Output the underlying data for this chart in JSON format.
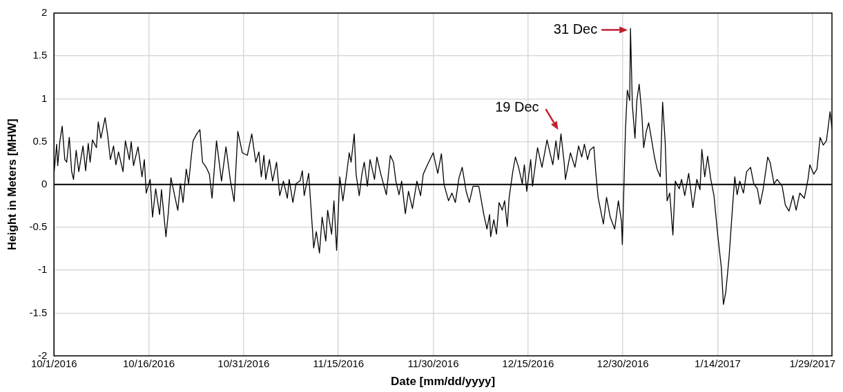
{
  "chart_data": {
    "type": "line",
    "xlabel": "Date [mm/dd/yyyy]",
    "ylabel": "Height in Meters [MHW]",
    "xlim": [
      "2016-10-01",
      "2017-02-01T02:00"
    ],
    "xticks": [
      {
        "value": "2016-10-01",
        "label": "10/1/2016"
      },
      {
        "value": "2016-10-16",
        "label": "10/16/2016"
      },
      {
        "value": "2016-10-31",
        "label": "10/31/2016"
      },
      {
        "value": "2016-11-15",
        "label": "11/15/2016"
      },
      {
        "value": "2016-11-30",
        "label": "11/30/2016"
      },
      {
        "value": "2016-12-15",
        "label": "12/15/2016"
      },
      {
        "value": "2016-12-30",
        "label": "12/30/2016"
      },
      {
        "value": "2017-01-14",
        "label": "1/14/2017"
      },
      {
        "value": "2017-01-29",
        "label": "1/29/2017"
      }
    ],
    "ylim": [
      -2,
      2
    ],
    "yticks": [
      -2,
      -1.5,
      -1,
      -0.5,
      0,
      0.5,
      1,
      1.5,
      2
    ],
    "grid": true,
    "legend": false,
    "marker": "none",
    "line_style": "solid",
    "ref_lines": [
      {
        "axis": "y",
        "value": 0,
        "color": "#000000"
      }
    ],
    "annotations": [
      {
        "text": "19 Dec",
        "x": "2016-12-20T05:00",
        "y": 0.59
      },
      {
        "text": "31 Dec",
        "x": "2016-12-31T05:00",
        "y": 1.82
      }
    ],
    "x": [
      "2016-10-01T00:00",
      "2016-10-01T10:00",
      "2016-10-01T14:00",
      "2016-10-01T22:00",
      "2016-10-02T07:00",
      "2016-10-02T17:00",
      "2016-10-03T00:00",
      "2016-10-03T10:00",
      "2016-10-03T19:00",
      "2016-10-04T02:00",
      "2016-10-04T12:00",
      "2016-10-04T22:00",
      "2016-10-05T14:00",
      "2016-10-06T00:00",
      "2016-10-06T10:00",
      "2016-10-06T17:00",
      "2016-10-07T02:00",
      "2016-10-07T17:00",
      "2016-10-08T00:00",
      "2016-10-08T10:00",
      "2016-10-09T02:00",
      "2016-10-09T12:00",
      "2016-10-09T22:00",
      "2016-10-10T10:00",
      "2016-10-10T19:00",
      "2016-10-11T05:00",
      "2016-10-11T22:00",
      "2016-10-12T07:00",
      "2016-10-12T22:00",
      "2016-10-13T05:00",
      "2016-10-13T14:00",
      "2016-10-14T07:00",
      "2016-10-14T22:00",
      "2016-10-15T07:00",
      "2016-10-15T14:00",
      "2016-10-16T05:00",
      "2016-10-16T14:00",
      "2016-10-17T02:00",
      "2016-10-17T17:00",
      "2016-10-18T00:00",
      "2016-10-18T17:00",
      "2016-10-19T02:00",
      "2016-10-19T12:00",
      "2016-10-20T02:00",
      "2016-10-20T14:00",
      "2016-10-21T00:00",
      "2016-10-21T10:00",
      "2016-10-21T22:00",
      "2016-10-22T07:00",
      "2016-10-22T17:00",
      "2016-10-23T00:00",
      "2016-10-23T14:00",
      "2016-10-24T02:00",
      "2016-10-24T12:00",
      "2016-10-25T02:00",
      "2016-10-25T14:00",
      "2016-10-26T00:00",
      "2016-10-26T17:00",
      "2016-10-27T12:00",
      "2016-10-28T05:00",
      "2016-10-28T22:00",
      "2016-10-29T12:00",
      "2016-10-30T02:00",
      "2016-10-30T19:00",
      "2016-10-31T14:00",
      "2016-11-01T07:00",
      "2016-11-01T22:00",
      "2016-11-02T10:00",
      "2016-11-02T19:00",
      "2016-11-03T05:00",
      "2016-11-03T12:00",
      "2016-11-04T02:00",
      "2016-11-04T14:00",
      "2016-11-05T05:00",
      "2016-11-05T17:00",
      "2016-11-06T07:00",
      "2016-11-06T22:00",
      "2016-11-07T05:00",
      "2016-11-07T19:00",
      "2016-11-08T07:00",
      "2016-11-08T22:00",
      "2016-11-09T07:00",
      "2016-11-09T14:00",
      "2016-11-10T07:00",
      "2016-11-10T14:00",
      "2016-11-11T02:00",
      "2016-11-11T12:00",
      "2016-11-12T00:00",
      "2016-11-12T10:00",
      "2016-11-13T00:00",
      "2016-11-13T07:00",
      "2016-11-13T22:00",
      "2016-11-14T07:00",
      "2016-11-14T17:00",
      "2016-11-15T05:00",
      "2016-11-15T17:00",
      "2016-11-16T07:00",
      "2016-11-16T17:00",
      "2016-11-17T00:00",
      "2016-11-17T12:00",
      "2016-11-17T19:00",
      "2016-11-18T07:00",
      "2016-11-18T17:00",
      "2016-11-19T02:00",
      "2016-11-19T14:00",
      "2016-11-20T00:00",
      "2016-11-20T17:00",
      "2016-11-21T02:00",
      "2016-11-21T17:00",
      "2016-11-22T14:00",
      "2016-11-23T05:00",
      "2016-11-23T17:00",
      "2016-11-24T02:00",
      "2016-11-24T14:00",
      "2016-11-25T00:00",
      "2016-11-25T14:00",
      "2016-11-26T02:00",
      "2016-11-26T17:00",
      "2016-11-27T10:00",
      "2016-11-28T00:00",
      "2016-11-28T10:00",
      "2016-11-29T02:00",
      "2016-11-30T00:00",
      "2016-11-30T17:00",
      "2016-12-01T07:00",
      "2016-12-01T17:00",
      "2016-12-02T10:00",
      "2016-12-02T23:00",
      "2016-12-03T12:00",
      "2016-12-04T02:00",
      "2016-12-04T14:00",
      "2016-12-05T05:00",
      "2016-12-05T17:00",
      "2016-12-06T07:00",
      "2016-12-07T05:00",
      "2016-12-08T00:00",
      "2016-12-08T12:00",
      "2016-12-08T22:00",
      "2016-12-09T02:00",
      "2016-12-09T14:00",
      "2016-12-10T00:00",
      "2016-12-10T10:00",
      "2016-12-10T22:00",
      "2016-12-11T07:00",
      "2016-12-11T17:00",
      "2016-12-12T00:00",
      "2016-12-12T14:00",
      "2016-12-13T00:00",
      "2016-12-13T12:00",
      "2016-12-14T02:00",
      "2016-12-14T10:00",
      "2016-12-14T19:00",
      "2016-12-15T10:00",
      "2016-12-15T17:00",
      "2016-12-16T12:00",
      "2016-12-17T05:00",
      "2016-12-18T00:00",
      "2016-12-18T22:00",
      "2016-12-19T10:00",
      "2016-12-19T19:00",
      "2016-12-20T05:00",
      "2016-12-20T17:00",
      "2016-12-20T22:00",
      "2016-12-21T17:00",
      "2016-12-22T10:00",
      "2016-12-23T00:00",
      "2016-12-23T12:00",
      "2016-12-23T22:00",
      "2016-12-24T10:00",
      "2016-12-24T19:00",
      "2016-12-25T10:00",
      "2016-12-25T17:00",
      "2016-12-26T02:00",
      "2016-12-26T22:00",
      "2016-12-27T10:00",
      "2016-12-28T00:00",
      "2016-12-28T17:00",
      "2016-12-29T07:00",
      "2016-12-29T19:00",
      "2016-12-29T22:00",
      "2016-12-30T10:00",
      "2016-12-30T17:00",
      "2016-12-31T02:00",
      "2016-12-31T05:00",
      "2016-12-31T12:00",
      "2016-12-31T22:00",
      "2017-01-01T05:00",
      "2017-01-01T14:00",
      "2017-01-02T00:00",
      "2017-01-02T07:00",
      "2017-01-02T17:00",
      "2017-01-03T02:00",
      "2017-01-03T10:00",
      "2017-01-04T00:00",
      "2017-01-04T10:00",
      "2017-01-04T22:00",
      "2017-01-05T07:00",
      "2017-01-05T17:00",
      "2017-01-06T00:00",
      "2017-01-06T10:00",
      "2017-01-06T22:00",
      "2017-01-07T07:00",
      "2017-01-07T22:00",
      "2017-01-08T07:00",
      "2017-01-08T19:00",
      "2017-01-09T10:00",
      "2017-01-10T02:00",
      "2017-01-10T17:00",
      "2017-01-11T05:00",
      "2017-01-11T12:00",
      "2017-01-11T23:00",
      "2017-01-12T10:00",
      "2017-01-12T22:00",
      "2017-01-13T10:00",
      "2017-01-14T00:00",
      "2017-01-14T14:00",
      "2017-01-14T22:00",
      "2017-01-15T07:00",
      "2017-01-15T19:00",
      "2017-01-16T07:00",
      "2017-01-16T17:00",
      "2017-01-17T02:00",
      "2017-01-17T12:00",
      "2017-01-18T02:00",
      "2017-01-18T14:00",
      "2017-01-19T05:00",
      "2017-01-19T17:00",
      "2017-01-20T07:00",
      "2017-01-20T17:00",
      "2017-01-21T05:00",
      "2017-01-21T22:00",
      "2017-01-22T07:00",
      "2017-01-22T22:00",
      "2017-01-23T10:00",
      "2017-01-24T05:00",
      "2017-01-24T17:00",
      "2017-01-25T07:00",
      "2017-01-25T22:00",
      "2017-01-26T10:00",
      "2017-01-27T00:00",
      "2017-01-27T17:00",
      "2017-01-28T07:00",
      "2017-01-28T14:00",
      "2017-01-29T05:00",
      "2017-01-29T17:00",
      "2017-01-30T05:00",
      "2017-01-30T17:00",
      "2017-01-31T05:00",
      "2017-01-31T19:00",
      "2017-02-01T02:00"
    ],
    "series": [
      {
        "color": "#000000",
        "values": [
          0.13,
          0.47,
          0.22,
          0.5,
          0.68,
          0.29,
          0.26,
          0.55,
          0.15,
          0.06,
          0.4,
          0.15,
          0.45,
          0.16,
          0.48,
          0.26,
          0.52,
          0.43,
          0.73,
          0.54,
          0.78,
          0.57,
          0.29,
          0.45,
          0.23,
          0.38,
          0.15,
          0.51,
          0.29,
          0.5,
          0.22,
          0.44,
          0.09,
          0.29,
          -0.1,
          0.06,
          -0.38,
          -0.05,
          -0.35,
          -0.06,
          -0.61,
          -0.33,
          0.08,
          -0.13,
          -0.3,
          0.01,
          -0.21,
          0.18,
          0.01,
          0.32,
          0.51,
          0.59,
          0.64,
          0.26,
          0.2,
          0.12,
          -0.16,
          0.51,
          0.04,
          0.44,
          0.04,
          -0.2,
          0.62,
          0.37,
          0.34,
          0.59,
          0.26,
          0.38,
          0.09,
          0.34,
          0.06,
          0.29,
          0.04,
          0.26,
          -0.13,
          0.04,
          -0.16,
          0.06,
          -0.21,
          0.01,
          0.04,
          0.16,
          -0.13,
          0.13,
          -0.19,
          -0.74,
          -0.55,
          -0.8,
          -0.38,
          -0.66,
          -0.3,
          -0.58,
          -0.19,
          -0.77,
          0.09,
          -0.19,
          0.12,
          0.37,
          0.26,
          0.59,
          0.12,
          -0.13,
          0.12,
          0.26,
          -0.02,
          0.29,
          0.06,
          0.32,
          0.12,
          -0.12,
          0.34,
          0.26,
          0.04,
          -0.12,
          0.04,
          -0.34,
          -0.08,
          -0.28,
          0.04,
          -0.13,
          0.12,
          0.23,
          0.37,
          0.13,
          0.36,
          0.0,
          -0.19,
          -0.1,
          -0.21,
          0.08,
          0.2,
          -0.08,
          -0.21,
          -0.02,
          -0.02,
          -0.35,
          -0.52,
          -0.35,
          -0.61,
          -0.41,
          -0.58,
          -0.21,
          -0.3,
          -0.19,
          -0.49,
          -0.16,
          0.15,
          0.32,
          0.2,
          0.01,
          0.23,
          -0.08,
          0.29,
          -0.02,
          0.43,
          0.2,
          0.52,
          0.23,
          0.51,
          0.29,
          0.59,
          0.26,
          0.06,
          0.37,
          0.2,
          0.45,
          0.32,
          0.47,
          0.29,
          0.4,
          0.44,
          0.15,
          -0.15,
          -0.46,
          -0.15,
          -0.38,
          -0.52,
          -0.19,
          -0.44,
          -0.7,
          0.65,
          1.1,
          0.98,
          1.82,
          0.93,
          0.54,
          0.98,
          1.17,
          0.82,
          0.43,
          0.62,
          0.72,
          0.58,
          0.32,
          0.18,
          0.09,
          0.96,
          0.48,
          -0.19,
          -0.1,
          -0.59,
          0.04,
          -0.05,
          0.06,
          -0.13,
          0.13,
          -0.27,
          0.06,
          -0.06,
          0.41,
          0.09,
          0.33,
          0.06,
          -0.13,
          -0.58,
          -0.97,
          -1.4,
          -1.25,
          -0.86,
          -0.33,
          0.09,
          -0.12,
          0.04,
          -0.1,
          0.15,
          0.2,
          0.01,
          -0.05,
          -0.23,
          -0.05,
          0.32,
          0.26,
          0.01,
          0.06,
          -0.02,
          -0.24,
          -0.31,
          -0.13,
          -0.3,
          -0.1,
          -0.16,
          0.06,
          0.23,
          0.12,
          0.18,
          0.55,
          0.46,
          0.51,
          0.85,
          0.65
        ]
      }
    ]
  }
}
